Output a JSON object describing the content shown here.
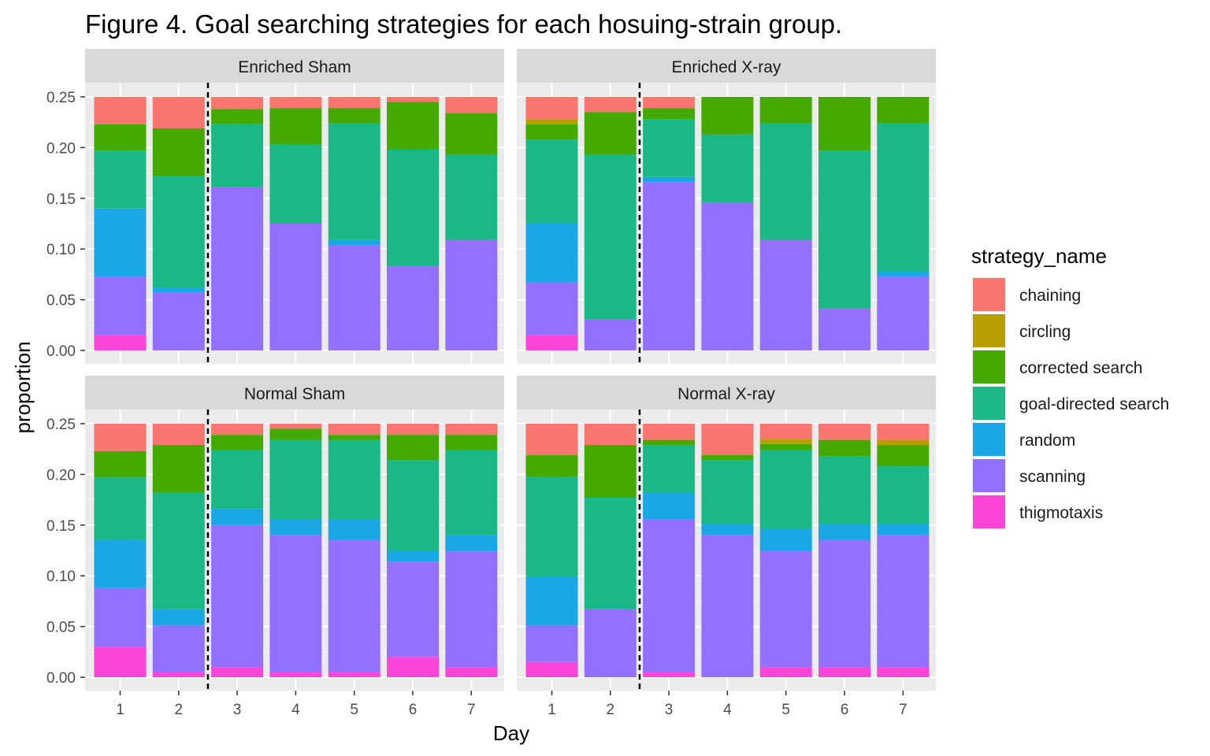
{
  "title": "Figure 4. Goal searching strategies for each hosuing-strain group.",
  "xlabel": "Day",
  "ylabel": "proportion",
  "legend_title": "strategy_name",
  "chart_data": {
    "type": "bar",
    "stacked": true,
    "facets": [
      "Enriched Sham",
      "Enriched X-ray",
      "Normal Sham",
      "Normal X-ray"
    ],
    "x": [
      "1",
      "2",
      "3",
      "4",
      "5",
      "6",
      "7"
    ],
    "ylim": [
      0,
      0.25
    ],
    "yticks": [
      "0.00",
      "0.05",
      "0.10",
      "0.15",
      "0.20",
      "0.25"
    ],
    "reference_line": {
      "x_between": [
        "2",
        "3"
      ],
      "style": "dashed"
    },
    "legend_position": "right",
    "grid": true,
    "stack_order_bottom_to_top": [
      "thigmotaxis",
      "scanning",
      "random",
      "goal-directed search",
      "corrected search",
      "circling",
      "chaining"
    ],
    "strategies": [
      {
        "name": "chaining",
        "color": "#F8766D"
      },
      {
        "name": "circling",
        "color": "#B79F00"
      },
      {
        "name": "corrected search",
        "color": "#44AA00"
      },
      {
        "name": "goal-directed search",
        "color": "#19B886"
      },
      {
        "name": "random",
        "color": "#1AA7E6"
      },
      {
        "name": "scanning",
        "color": "#9370FF"
      },
      {
        "name": "thigmotaxis",
        "color": "#FB45D6"
      }
    ],
    "panels": [
      {
        "name": "Enriched Sham",
        "series": {
          "thigmotaxis": [
            0.015,
            0,
            0,
            0,
            0,
            0,
            0
          ],
          "scanning": [
            0.058,
            0.057,
            0.161,
            0.125,
            0.104,
            0.083,
            0.109
          ],
          "random": [
            0.067,
            0.005,
            0,
            0,
            0.005,
            0,
            0
          ],
          "goal-directed search": [
            0.057,
            0.11,
            0.062,
            0.078,
            0.115,
            0.115,
            0.084
          ],
          "corrected search": [
            0.026,
            0.047,
            0.015,
            0.036,
            0.015,
            0.047,
            0.041
          ],
          "circling": [
            0,
            0,
            0,
            0,
            0,
            0,
            0
          ],
          "chaining": [
            0.027,
            0.031,
            0.012,
            0.011,
            0.011,
            0.005,
            0.016
          ]
        }
      },
      {
        "name": "Enriched X-ray",
        "series": {
          "thigmotaxis": [
            0.015,
            0,
            0,
            0,
            0,
            0,
            0
          ],
          "scanning": [
            0.052,
            0.031,
            0.166,
            0.146,
            0.109,
            0.041,
            0.073
          ],
          "random": [
            0.058,
            0,
            0.005,
            0,
            0,
            0,
            0.005
          ],
          "goal-directed search": [
            0.083,
            0.162,
            0.057,
            0.067,
            0.115,
            0.156,
            0.146
          ],
          "corrected search": [
            0.015,
            0.042,
            0.011,
            0.037,
            0.026,
            0.053,
            0.026
          ],
          "circling": [
            0.005,
            0,
            0,
            0,
            0,
            0,
            0
          ],
          "chaining": [
            0.022,
            0.015,
            0.011,
            0,
            0,
            0,
            0
          ]
        }
      },
      {
        "name": "Normal Sham",
        "series": {
          "thigmotaxis": [
            0.03,
            0.005,
            0.01,
            0.005,
            0.005,
            0.02,
            0.01
          ],
          "scanning": [
            0.058,
            0.046,
            0.14,
            0.135,
            0.13,
            0.094,
            0.114
          ],
          "random": [
            0.047,
            0.016,
            0.016,
            0.016,
            0.021,
            0.011,
            0.016
          ],
          "goal-directed search": [
            0.062,
            0.115,
            0.058,
            0.078,
            0.078,
            0.089,
            0.084
          ],
          "corrected search": [
            0.026,
            0.047,
            0.015,
            0.011,
            0.005,
            0.025,
            0.015
          ],
          "circling": [
            0,
            0,
            0,
            0,
            0,
            0,
            0
          ],
          "chaining": [
            0.027,
            0.021,
            0.011,
            0.005,
            0.011,
            0.011,
            0.011
          ]
        }
      },
      {
        "name": "Normal X-ray",
        "series": {
          "thigmotaxis": [
            0.015,
            0,
            0.005,
            0,
            0.01,
            0.01,
            0.01
          ],
          "scanning": [
            0.036,
            0.067,
            0.151,
            0.14,
            0.115,
            0.125,
            0.13
          ],
          "random": [
            0.048,
            0,
            0.026,
            0.011,
            0.021,
            0.016,
            0.011
          ],
          "goal-directed search": [
            0.099,
            0.11,
            0.047,
            0.063,
            0.078,
            0.067,
            0.057
          ],
          "corrected search": [
            0.021,
            0.052,
            0.005,
            0.005,
            0.006,
            0.016,
            0.021
          ],
          "circling": [
            0,
            0,
            0,
            0,
            0.005,
            0,
            0.005
          ],
          "chaining": [
            0.031,
            0.021,
            0.016,
            0.031,
            0.015,
            0.016,
            0.016
          ]
        }
      }
    ]
  }
}
